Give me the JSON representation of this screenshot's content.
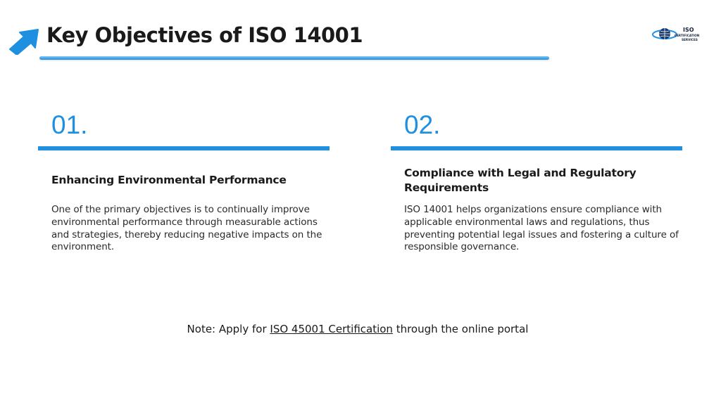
{
  "slide": {
    "title": "Key Objectives of ISO 14001"
  },
  "logo": {
    "main": "ISO",
    "line1": "CERTIFICATION",
    "line2": "SERVICES"
  },
  "objectives": [
    {
      "number": "01.",
      "heading": "Enhancing Environmental Performance",
      "body": "One of the primary objectives is to continually improve environmental performance through measurable actions and strategies, thereby reducing negative impacts on the environment."
    },
    {
      "number": "02.",
      "heading": "Compliance with Legal and Regulatory Requirements",
      "body": "ISO 14001 helps organizations ensure compliance with applicable environmental laws and regulations, thus preventing potential legal issues and fostering a culture of responsible governance."
    }
  ],
  "note": {
    "prefix": "Note: Apply for ",
    "link_text": "ISO 45001 Certification",
    "suffix": " through the online portal"
  },
  "colors": {
    "accent": "#1f8fe0",
    "text": "#1a1a1a"
  }
}
